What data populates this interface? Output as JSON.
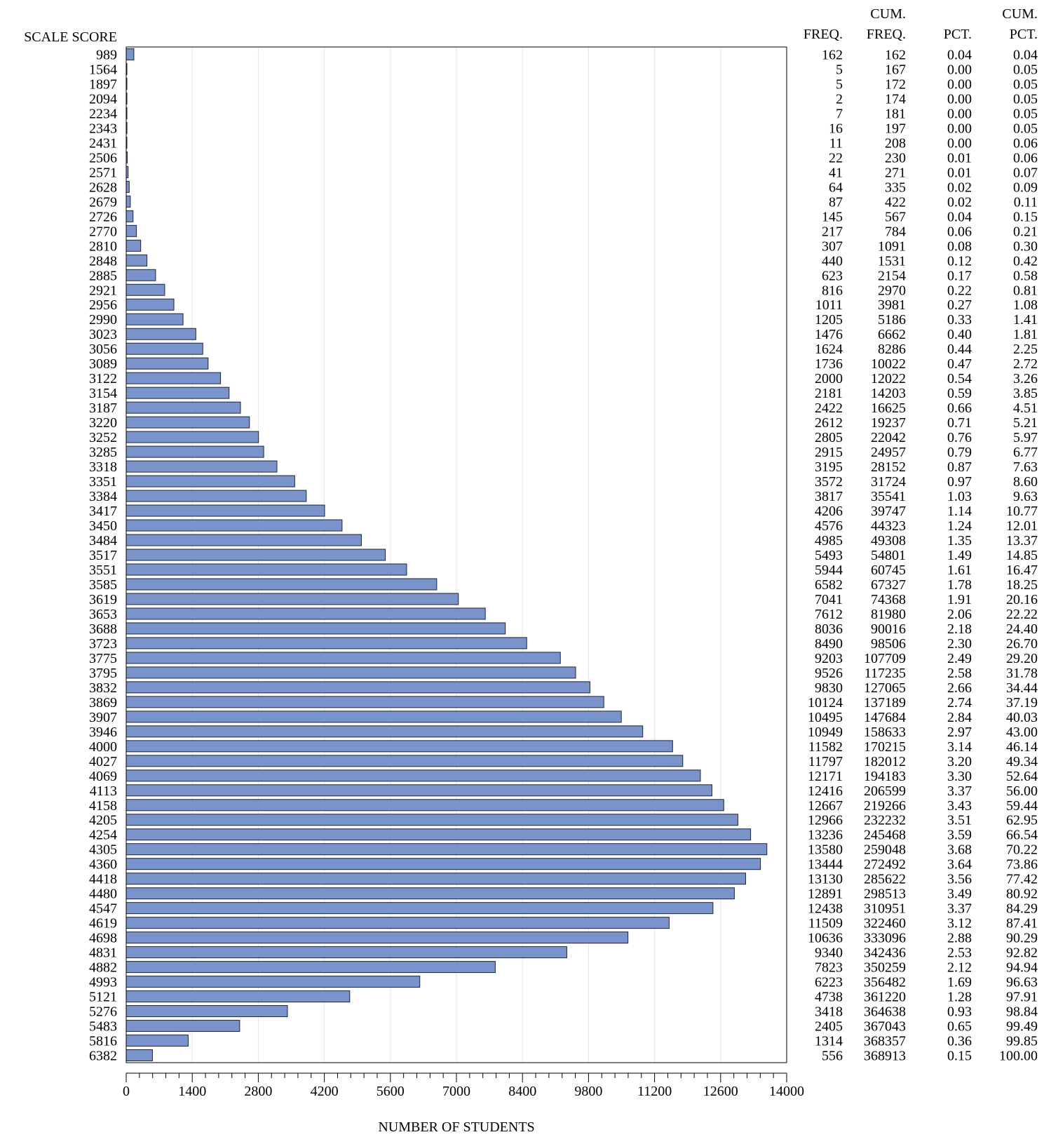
{
  "chart_data": {
    "type": "bar",
    "orientation": "horizontal",
    "ylabel": "SCALE SCORE",
    "xlabel": "NUMBER OF STUDENTS",
    "xlim": [
      0,
      14000
    ],
    "xticks": [
      0,
      1400,
      2800,
      4200,
      5600,
      7000,
      8400,
      9800,
      11200,
      12600,
      14000
    ],
    "grid": "vertical",
    "bar_color": "#7b93cb",
    "table_headers": {
      "freq": [
        "",
        "FREQ."
      ],
      "cum_freq": [
        "CUM.",
        "FREQ."
      ],
      "pct": [
        "",
        "PCT."
      ],
      "cum_pct": [
        "CUM.",
        "PCT."
      ]
    },
    "categories": [
      "989",
      "1564",
      "1897",
      "2094",
      "2234",
      "2343",
      "2431",
      "2506",
      "2571",
      "2628",
      "2679",
      "2726",
      "2770",
      "2810",
      "2848",
      "2885",
      "2921",
      "2956",
      "2990",
      "3023",
      "3056",
      "3089",
      "3122",
      "3154",
      "3187",
      "3220",
      "3252",
      "3285",
      "3318",
      "3351",
      "3384",
      "3417",
      "3450",
      "3484",
      "3517",
      "3551",
      "3585",
      "3619",
      "3653",
      "3688",
      "3723",
      "3775",
      "3795",
      "3832",
      "3869",
      "3907",
      "3946",
      "4000",
      "4027",
      "4069",
      "4113",
      "4158",
      "4205",
      "4254",
      "4305",
      "4360",
      "4418",
      "4480",
      "4547",
      "4619",
      "4698",
      "4831",
      "4882",
      "4993",
      "5121",
      "5276",
      "5483",
      "5816",
      "6382"
    ],
    "values": [
      162,
      5,
      5,
      2,
      7,
      16,
      11,
      22,
      41,
      64,
      87,
      145,
      217,
      307,
      440,
      623,
      816,
      1011,
      1205,
      1476,
      1624,
      1736,
      2000,
      2181,
      2422,
      2612,
      2805,
      2915,
      3195,
      3572,
      3817,
      4206,
      4576,
      4985,
      5493,
      5944,
      6582,
      7041,
      7612,
      8036,
      8490,
      9203,
      9526,
      9830,
      10124,
      10495,
      10949,
      11582,
      11797,
      12171,
      12416,
      12667,
      12966,
      13236,
      13580,
      13444,
      13130,
      12891,
      12438,
      11509,
      10636,
      9340,
      7823,
      6223,
      4738,
      3418,
      2405,
      1314,
      556
    ],
    "cum_freq": [
      "162",
      "167",
      "172",
      "174",
      "181",
      "197",
      "208",
      "230",
      "271",
      "335",
      "422",
      "567",
      "784",
      "1091",
      "1531",
      "2154",
      "2970",
      "3981",
      "5186",
      "6662",
      "8286",
      "10022",
      "12022",
      "14203",
      "16625",
      "19237",
      "22042",
      "24957",
      "28152",
      "31724",
      "35541",
      "39747",
      "44323",
      "49308",
      "54801",
      "60745",
      "67327",
      "74368",
      "81980",
      "90016",
      "98506",
      "107709",
      "117235",
      "127065",
      "137189",
      "147684",
      "158633",
      "170215",
      "182012",
      "194183",
      "206599",
      "219266",
      "232232",
      "245468",
      "259048",
      "272492",
      "285622",
      "298513",
      "310951",
      "322460",
      "333096",
      "342436",
      "350259",
      "356482",
      "361220",
      "364638",
      "367043",
      "368357",
      "368913"
    ],
    "pct": [
      "0.04",
      "0.00",
      "0.00",
      "0.00",
      "0.00",
      "0.00",
      "0.00",
      "0.01",
      "0.01",
      "0.02",
      "0.02",
      "0.04",
      "0.06",
      "0.08",
      "0.12",
      "0.17",
      "0.22",
      "0.27",
      "0.33",
      "0.40",
      "0.44",
      "0.47",
      "0.54",
      "0.59",
      "0.66",
      "0.71",
      "0.76",
      "0.79",
      "0.87",
      "0.97",
      "1.03",
      "1.14",
      "1.24",
      "1.35",
      "1.49",
      "1.61",
      "1.78",
      "1.91",
      "2.06",
      "2.18",
      "2.30",
      "2.49",
      "2.58",
      "2.66",
      "2.74",
      "2.84",
      "2.97",
      "3.14",
      "3.20",
      "3.30",
      "3.37",
      "3.43",
      "3.51",
      "3.59",
      "3.68",
      "3.64",
      "3.56",
      "3.49",
      "3.37",
      "3.12",
      "2.88",
      "2.53",
      "2.12",
      "1.69",
      "1.28",
      "0.93",
      "0.65",
      "0.36",
      "0.15"
    ],
    "cum_pct": [
      "0.04",
      "0.05",
      "0.05",
      "0.05",
      "0.05",
      "0.05",
      "0.06",
      "0.06",
      "0.07",
      "0.09",
      "0.11",
      "0.15",
      "0.21",
      "0.30",
      "0.42",
      "0.58",
      "0.81",
      "1.08",
      "1.41",
      "1.81",
      "2.25",
      "2.72",
      "3.26",
      "3.85",
      "4.51",
      "5.21",
      "5.97",
      "6.77",
      "7.63",
      "8.60",
      "9.63",
      "10.77",
      "12.01",
      "13.37",
      "14.85",
      "16.47",
      "18.25",
      "20.16",
      "22.22",
      "24.40",
      "26.70",
      "29.20",
      "31.78",
      "34.44",
      "37.19",
      "40.03",
      "43.00",
      "46.14",
      "49.34",
      "52.64",
      "56.00",
      "59.44",
      "62.95",
      "66.54",
      "70.22",
      "73.86",
      "77.42",
      "80.92",
      "84.29",
      "87.41",
      "90.29",
      "92.82",
      "94.94",
      "96.63",
      "97.91",
      "98.84",
      "99.49",
      "99.85",
      "100.00"
    ]
  }
}
